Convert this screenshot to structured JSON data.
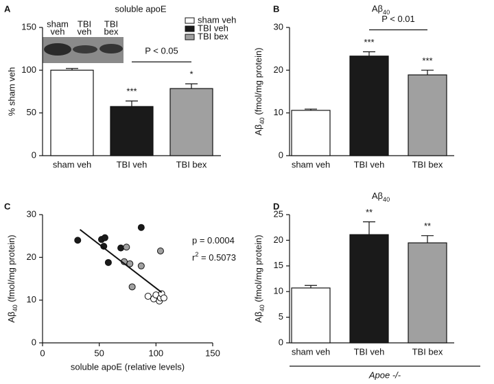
{
  "chart_data": [
    {
      "type": "bar",
      "panel_label": "A",
      "title": "soluble apoE",
      "ylabel": "% sham veh",
      "categories": [
        "sham veh",
        "TBI veh",
        "TBI bex"
      ],
      "values": [
        100,
        57.5,
        78.5
      ],
      "errors": [
        2,
        6.5,
        5.5
      ],
      "colors": [
        "#ffffff",
        "#1a1a1a",
        "#a0a0a0"
      ],
      "ylim": [
        0,
        150
      ],
      "yticks": [
        0,
        50,
        100,
        150
      ],
      "significance": [
        null,
        "***",
        "*"
      ],
      "comparison_label": "P < 0.05",
      "legend": [
        "sham veh",
        "TBI veh",
        "TBI bex"
      ],
      "blot_lanes": [
        [
          "sham",
          "veh"
        ],
        [
          "TBI",
          "veh"
        ],
        [
          "TBI",
          "bex"
        ]
      ]
    },
    {
      "type": "bar",
      "panel_label": "B",
      "title": [
        "Aβ",
        "40"
      ],
      "ylabel": [
        "Aβ",
        "40",
        " (fmol/mg protein)"
      ],
      "categories": [
        "sham veh",
        "TBI veh",
        "TBI bex"
      ],
      "values": [
        10.6,
        23.3,
        18.9
      ],
      "errors": [
        0.3,
        1.0,
        1.1
      ],
      "colors": [
        "#ffffff",
        "#1a1a1a",
        "#a0a0a0"
      ],
      "ylim": [
        0,
        30
      ],
      "yticks": [
        0,
        10,
        20,
        30
      ],
      "significance": [
        null,
        "***",
        "***"
      ],
      "comparison_label": "P < 0.01"
    },
    {
      "type": "scatter",
      "panel_label": "C",
      "xlabel": "soluble apoE (relative levels)",
      "ylabel": [
        "Aβ",
        "40",
        " (fmol/mg protein)"
      ],
      "xlim": [
        0,
        150
      ],
      "xticks": [
        0,
        50,
        100,
        150
      ],
      "ylim": [
        0,
        30
      ],
      "yticks": [
        0,
        10,
        20,
        30
      ],
      "series": [
        {
          "color": "#1a1a1a",
          "x": [
            31,
            52,
            55,
            54,
            58,
            69,
            87
          ],
          "y": [
            24,
            24.2,
            24.6,
            22.6,
            18.8,
            22.2,
            27
          ]
        },
        {
          "color": "#a0a0a0",
          "x": [
            74,
            72,
            77,
            87,
            79,
            104
          ],
          "y": [
            22.4,
            19,
            18.5,
            18,
            13.1,
            21.5
          ]
        },
        {
          "color": "#ffffff",
          "x": [
            93,
            98,
            100,
            103,
            104,
            105,
            107
          ],
          "y": [
            10.9,
            10.3,
            11.2,
            9.8,
            10.5,
            11.5,
            10.5
          ]
        }
      ],
      "fit": {
        "x": [
          33,
          105
        ],
        "y": [
          26.5,
          11.8
        ]
      },
      "annotations": [
        [
          "p = 0.0004"
        ],
        [
          "r",
          "2",
          " = 0.5073"
        ]
      ]
    },
    {
      "type": "bar",
      "panel_label": "D",
      "title": [
        "Aβ",
        "40"
      ],
      "ylabel": [
        "Aβ",
        "40",
        " (fmol/mg protein)"
      ],
      "categories": [
        "sham veh",
        "TBI veh",
        "TBI bex"
      ],
      "values": [
        10.7,
        21.1,
        19.5
      ],
      "errors": [
        0.5,
        2.5,
        1.4
      ],
      "colors": [
        "#ffffff",
        "#1a1a1a",
        "#a0a0a0"
      ],
      "ylim": [
        0,
        25
      ],
      "yticks": [
        0,
        5,
        10,
        15,
        20,
        25
      ],
      "significance": [
        null,
        "**",
        "**"
      ],
      "group_label": "Apoe -/-"
    }
  ]
}
